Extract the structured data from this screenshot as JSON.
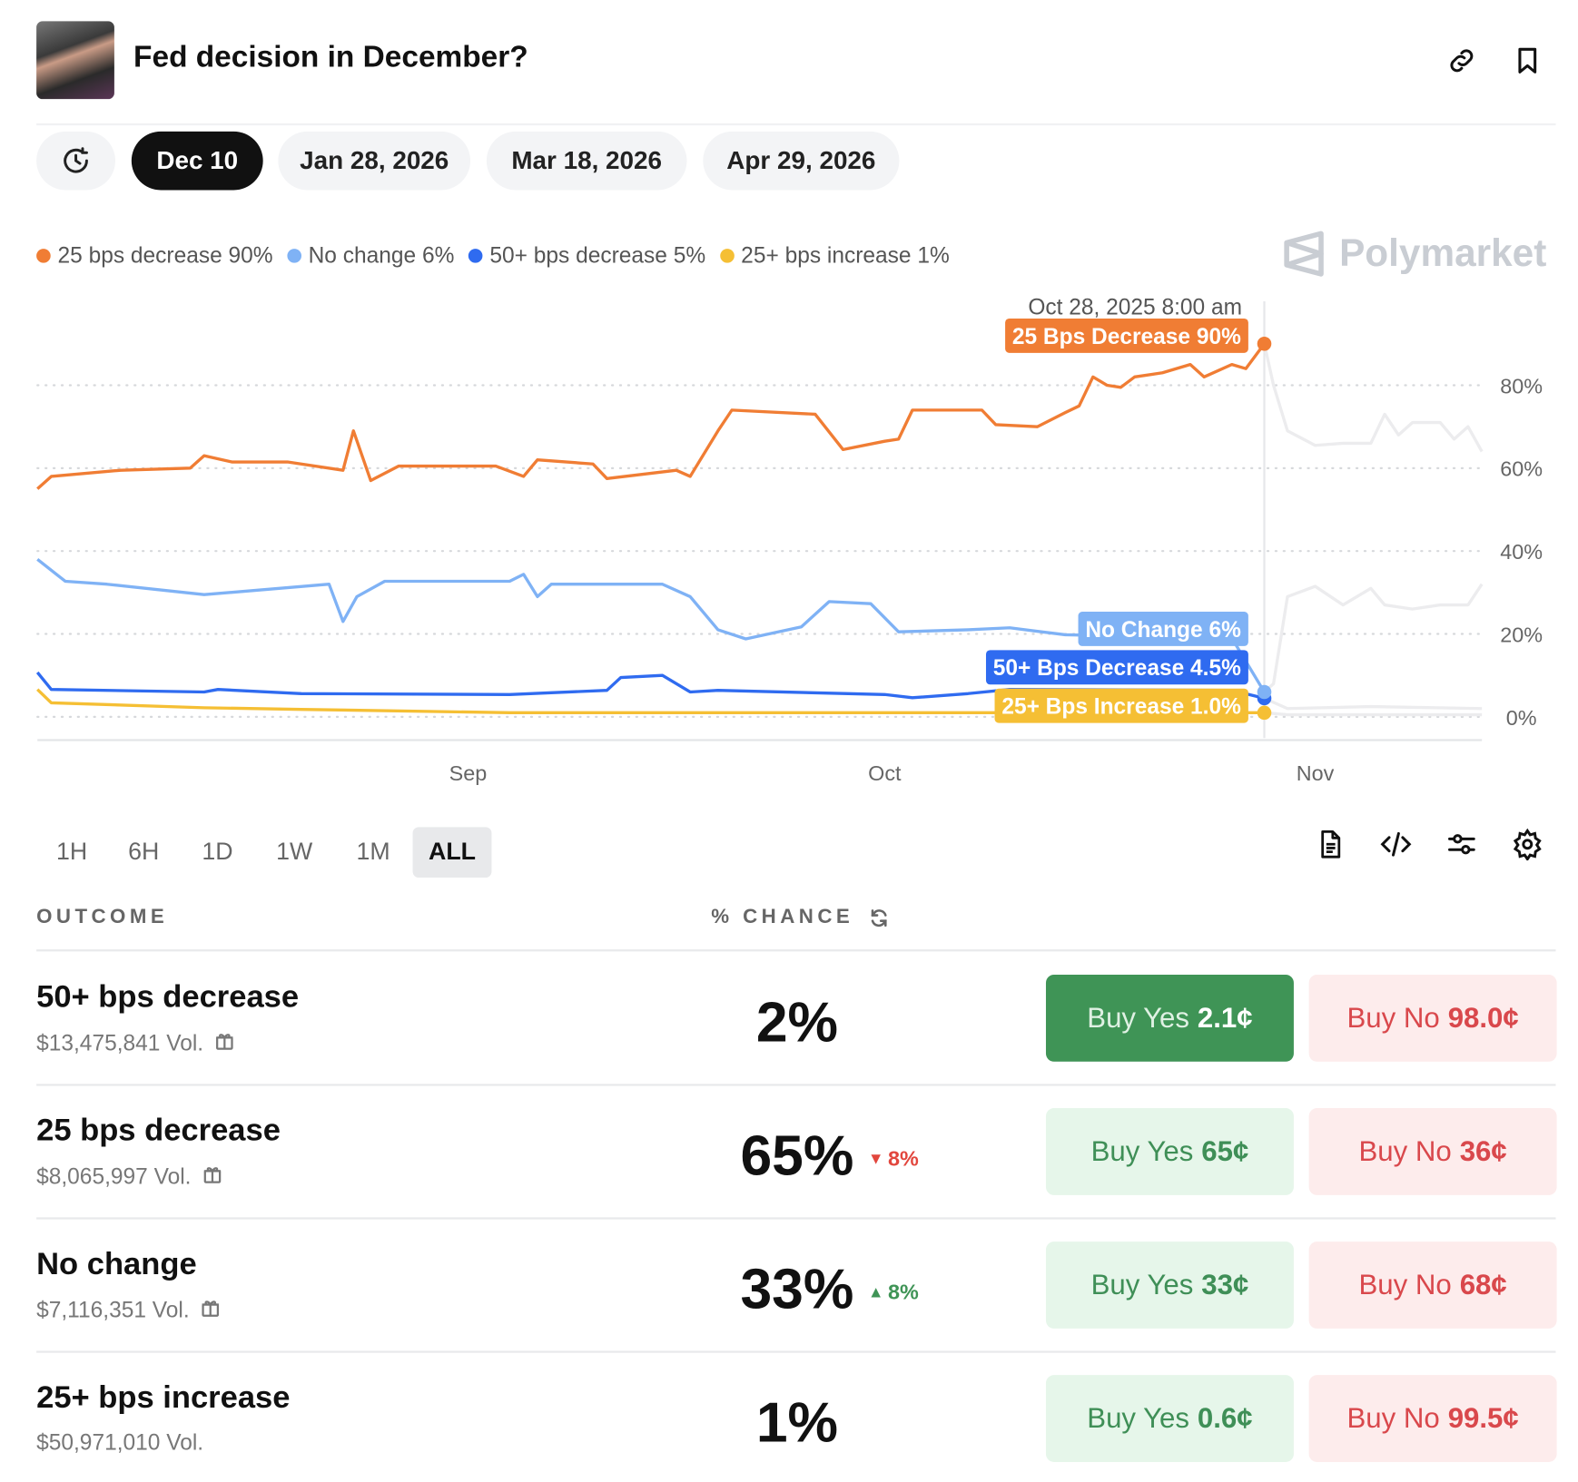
{
  "header": {
    "title": "Fed decision in December?",
    "link_icon": "link-icon",
    "bookmark_icon": "bookmark-icon"
  },
  "date_tabs": {
    "history_icon": "clock-history-icon",
    "items": [
      {
        "label": "Dec 10",
        "active": true
      },
      {
        "label": "Jan 28, 2026"
      },
      {
        "label": "Mar 18, 2026"
      },
      {
        "label": "Apr 29, 2026"
      }
    ]
  },
  "legend": [
    {
      "label": "25 bps decrease 90%",
      "color": "#f07d34"
    },
    {
      "label": "No change 6%",
      "color": "#7fb2f5"
    },
    {
      "label": "50+ bps decrease 5%",
      "color": "#2f6bf0"
    },
    {
      "label": "25+ bps increase 1%",
      "color": "#f5bf34"
    }
  ],
  "brand": "Polymarket",
  "chart_data": {
    "type": "line",
    "ylim": [
      0,
      100
    ],
    "yticks": [
      "0%",
      "20%",
      "40%",
      "60%",
      "80%"
    ],
    "ytick_values": [
      0,
      20,
      40,
      60,
      80
    ],
    "xlim": [
      "2025-08-01",
      "2025-11-13"
    ],
    "xticks": [
      {
        "label": "Sep",
        "date": "2025-09-01"
      },
      {
        "label": "Oct",
        "date": "2025-10-01"
      },
      {
        "label": "Nov",
        "date": "2025-11-01"
      }
    ],
    "grid": true,
    "hover": {
      "date_label": "Oct 28, 2025 8:00 am",
      "date": "2025-10-28T08:00",
      "labels": [
        {
          "text": "25 Bps Decrease 90%",
          "series": 0
        },
        {
          "text": "No Change 6%",
          "series": 1
        },
        {
          "text": "50+ Bps Decrease 4.5%",
          "series": 2
        },
        {
          "text": "25+ Bps Increase 1.0%",
          "series": 3
        }
      ]
    },
    "series": [
      {
        "name": "25 bps decrease",
        "color": "#f07d34",
        "points": [
          [
            "2025-08-01",
            55
          ],
          [
            "2025-08-02",
            58
          ],
          [
            "2025-08-07",
            59.5
          ],
          [
            "2025-08-12",
            60
          ],
          [
            "2025-08-13",
            63
          ],
          [
            "2025-08-15",
            61.5
          ],
          [
            "2025-08-19",
            61.5
          ],
          [
            "2025-08-23",
            59.5
          ],
          [
            "2025-08-23T18:00",
            69
          ],
          [
            "2025-08-25",
            57
          ],
          [
            "2025-08-27",
            60.5
          ],
          [
            "2025-09-03",
            60.5
          ],
          [
            "2025-09-05",
            58
          ],
          [
            "2025-09-06",
            62
          ],
          [
            "2025-09-10",
            61
          ],
          [
            "2025-09-11",
            57.5
          ],
          [
            "2025-09-16",
            59.5
          ],
          [
            "2025-09-17",
            58
          ],
          [
            "2025-09-19",
            69
          ],
          [
            "2025-09-20",
            74
          ],
          [
            "2025-09-26",
            73
          ],
          [
            "2025-09-28",
            64.5
          ],
          [
            "2025-10-01",
            66.5
          ],
          [
            "2025-10-02",
            67
          ],
          [
            "2025-10-03",
            74
          ],
          [
            "2025-10-08",
            74
          ],
          [
            "2025-10-09",
            70.5
          ],
          [
            "2025-10-12",
            70
          ],
          [
            "2025-10-14",
            73.4
          ],
          [
            "2025-10-15",
            75
          ],
          [
            "2025-10-16",
            82
          ],
          [
            "2025-10-17",
            80
          ],
          [
            "2025-10-18",
            79.5
          ],
          [
            "2025-10-19",
            82
          ],
          [
            "2025-10-21",
            83
          ],
          [
            "2025-10-23",
            85
          ],
          [
            "2025-10-24",
            82
          ],
          [
            "2025-10-26",
            85
          ],
          [
            "2025-10-27",
            84
          ],
          [
            "2025-10-28T08:00",
            90
          ],
          [
            "2025-10-29",
            80
          ],
          [
            "2025-10-30",
            69
          ],
          [
            "2025-11-01",
            65.5
          ],
          [
            "2025-11-03",
            66
          ],
          [
            "2025-11-05",
            66
          ],
          [
            "2025-11-06",
            73
          ],
          [
            "2025-11-07",
            68
          ],
          [
            "2025-11-08",
            71
          ],
          [
            "2025-11-10",
            71
          ],
          [
            "2025-11-11",
            67
          ],
          [
            "2025-11-12",
            70
          ],
          [
            "2025-11-13",
            64
          ]
        ]
      },
      {
        "name": "No change",
        "color": "#7fb2f5",
        "points": [
          [
            "2025-08-01",
            38
          ],
          [
            "2025-08-03",
            32.7
          ],
          [
            "2025-08-06",
            32
          ],
          [
            "2025-08-13",
            29.5
          ],
          [
            "2025-08-22",
            32
          ],
          [
            "2025-08-23",
            23
          ],
          [
            "2025-08-24",
            29
          ],
          [
            "2025-08-26",
            32.7
          ],
          [
            "2025-09-04",
            32.7
          ],
          [
            "2025-09-05",
            34.4
          ],
          [
            "2025-09-06",
            29
          ],
          [
            "2025-09-07",
            32
          ],
          [
            "2025-09-15",
            32
          ],
          [
            "2025-09-17",
            29
          ],
          [
            "2025-09-19",
            21
          ],
          [
            "2025-09-21",
            18.8
          ],
          [
            "2025-09-25",
            21.7
          ],
          [
            "2025-09-27",
            27.8
          ],
          [
            "2025-09-30",
            27.3
          ],
          [
            "2025-10-02",
            20.5
          ],
          [
            "2025-10-07",
            21
          ],
          [
            "2025-10-10",
            21.5
          ],
          [
            "2025-10-14",
            19.8
          ],
          [
            "2025-10-26",
            19
          ],
          [
            "2025-10-28T08:00",
            6
          ],
          [
            "2025-10-29",
            8
          ],
          [
            "2025-10-30",
            29
          ],
          [
            "2025-11-01",
            31.5
          ],
          [
            "2025-11-03",
            27
          ],
          [
            "2025-11-05",
            31
          ],
          [
            "2025-11-06",
            27
          ],
          [
            "2025-11-08",
            26
          ],
          [
            "2025-11-10",
            27
          ],
          [
            "2025-11-12",
            27
          ],
          [
            "2025-11-13",
            32
          ]
        ]
      },
      {
        "name": "50+ bps decrease",
        "color": "#2f6bf0",
        "points": [
          [
            "2025-08-01",
            10.7
          ],
          [
            "2025-08-02",
            6.6
          ],
          [
            "2025-08-13",
            6
          ],
          [
            "2025-08-14",
            6.6
          ],
          [
            "2025-08-20",
            5.6
          ],
          [
            "2025-09-04",
            5.4
          ],
          [
            "2025-09-11",
            6.4
          ],
          [
            "2025-09-12",
            9.5
          ],
          [
            "2025-09-15",
            10
          ],
          [
            "2025-09-17",
            6
          ],
          [
            "2025-09-19",
            6.4
          ],
          [
            "2025-10-01",
            5.4
          ],
          [
            "2025-10-03",
            4.6
          ],
          [
            "2025-10-07",
            5.6
          ],
          [
            "2025-10-10",
            6.6
          ],
          [
            "2025-10-26",
            6.4
          ],
          [
            "2025-10-28T08:00",
            4.5
          ],
          [
            "2025-10-30",
            2
          ],
          [
            "2025-11-05",
            2.5
          ],
          [
            "2025-11-13",
            2
          ]
        ]
      },
      {
        "name": "25+ bps increase",
        "color": "#f5bf34",
        "points": [
          [
            "2025-08-01",
            6.6
          ],
          [
            "2025-08-02",
            3.4
          ],
          [
            "2025-08-13",
            2.2
          ],
          [
            "2025-08-20",
            1.8
          ],
          [
            "2025-09-04",
            1
          ],
          [
            "2025-10-28T08:00",
            1
          ],
          [
            "2025-10-30",
            0.5
          ],
          [
            "2025-11-13",
            0.5
          ]
        ]
      }
    ]
  },
  "time_range": {
    "items": [
      "1H",
      "6H",
      "1D",
      "1W",
      "1M",
      "ALL"
    ],
    "active": "ALL"
  },
  "tools": [
    "document-icon",
    "code-icon",
    "sliders-icon",
    "gear-icon"
  ],
  "table": {
    "col_outcome": "OUTCOME",
    "col_chance": "% CHANCE",
    "rows": [
      {
        "name": "50+ bps decrease",
        "volume": "$13,475,841 Vol.",
        "gift": true,
        "chance": "2%",
        "delta": "",
        "delta_dir": "",
        "yes_label": "Buy Yes",
        "yes_price": "2.1¢",
        "no_label": "Buy No",
        "no_price": "98.0¢",
        "yes_active": true
      },
      {
        "name": "25 bps decrease",
        "volume": "$8,065,997 Vol.",
        "gift": true,
        "chance": "65%",
        "delta": "8%",
        "delta_dir": "down",
        "yes_label": "Buy Yes",
        "yes_price": "65¢",
        "no_label": "Buy No",
        "no_price": "36¢"
      },
      {
        "name": "No change",
        "volume": "$7,116,351 Vol.",
        "gift": true,
        "chance": "33%",
        "delta": "8%",
        "delta_dir": "up",
        "yes_label": "Buy Yes",
        "yes_price": "33¢",
        "no_label": "Buy No",
        "no_price": "68¢"
      },
      {
        "name": "25+ bps increase",
        "volume": "$50,971,010 Vol.",
        "gift": false,
        "chance": "1%",
        "delta": "",
        "delta_dir": "",
        "yes_label": "Buy Yes",
        "yes_price": "0.6¢",
        "no_label": "Buy No",
        "no_price": "99.5¢"
      }
    ]
  }
}
